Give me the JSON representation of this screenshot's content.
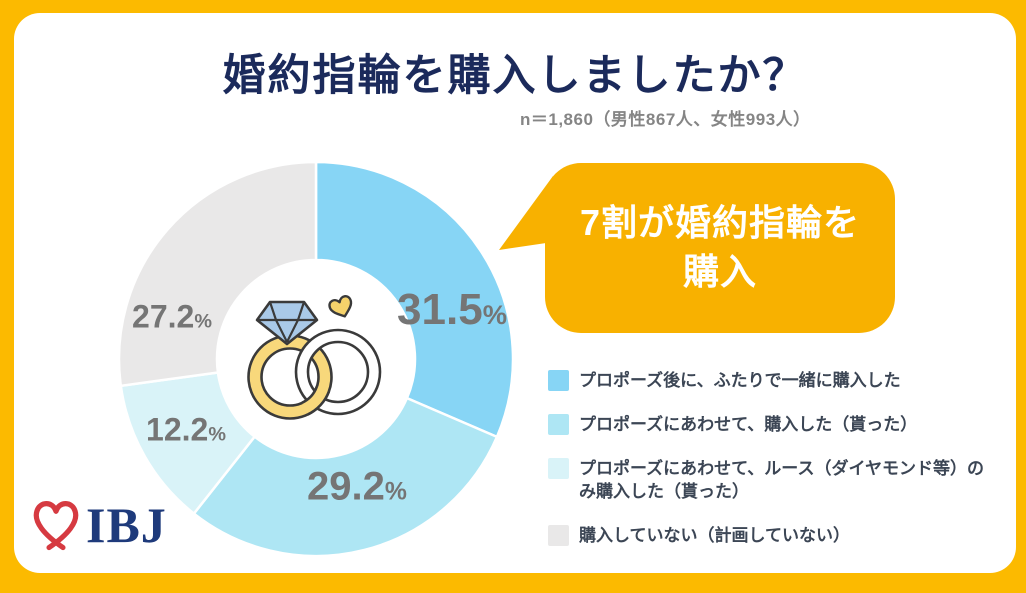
{
  "header": {
    "title": "婚約指輪を購入しましたか？",
    "sample_note": "n＝1,860（男性867人、女性993人）"
  },
  "callout": {
    "line1": "7割が婚約指輪を",
    "line2": "購入",
    "bg_color": "#F8B100",
    "text_color": "#FFFFFF"
  },
  "chart_data": {
    "type": "pie",
    "variant": "donut",
    "title": "婚約指輪を購入しましたか？",
    "sample_size_note": "n＝1,860（男性867人、女性993人）",
    "start_angle_deg": 0,
    "direction": "clockwise",
    "donut_hole_ratio": 0.5,
    "gap_color": "#FFFFFF",
    "percent_sign": "%",
    "segments": [
      {
        "label": "プロポーズ後に、ふたりで一緒に購入した",
        "value": "31.5",
        "color": "#87D5F5"
      },
      {
        "label": "プロポーズにあわせて、購入した（貰った）",
        "value": "29.2",
        "color": "#AEE6F4"
      },
      {
        "label": "プロポーズにあわせて、ルース（ダイヤモンド等）のみ購入した（貰った）",
        "value": "12.2",
        "color": "#D9F3F8"
      },
      {
        "label": "購入していない（計画していない）",
        "value": "27.2",
        "color": "#E9E8E8"
      }
    ],
    "label_color": "#757575",
    "legend_position": "right"
  },
  "frame": {
    "border_color": "#FCBA00",
    "card_background": "#FFFFFF"
  },
  "logo": {
    "text": "IBJ",
    "text_color": "#1E3A7B",
    "heart_color": "#D63A41"
  }
}
